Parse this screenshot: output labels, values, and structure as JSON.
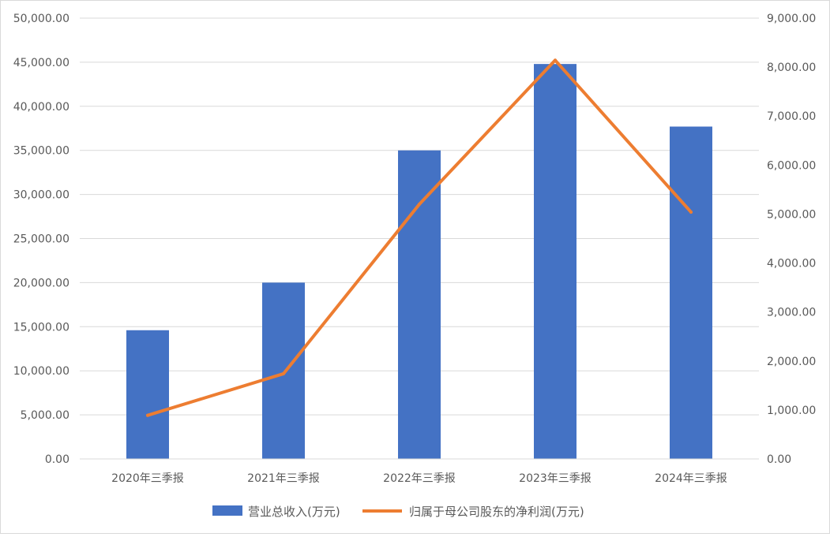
{
  "chart_data": {
    "type": "bar",
    "title": "",
    "categories": [
      "2020年三季报",
      "2021年三季报",
      "2022年三季报",
      "2023年三季报",
      "2024年三季报"
    ],
    "series": [
      {
        "name": "营业总收入(万元)",
        "type": "bar",
        "axis": "left",
        "color": "#4472c4",
        "values": [
          14600,
          20000,
          35000,
          44800,
          37700
        ]
      },
      {
        "name": "归属于母公司股东的净利润(万元)",
        "type": "line",
        "axis": "right",
        "color": "#ed7d31",
        "values": [
          890,
          1740,
          5200,
          8140,
          5040
        ]
      }
    ],
    "y_left": {
      "min": 0,
      "max": 50000,
      "step": 5000,
      "tick_labels": [
        "0.00",
        "5,000.00",
        "10,000.00",
        "15,000.00",
        "20,000.00",
        "25,000.00",
        "30,000.00",
        "35,000.00",
        "40,000.00",
        "45,000.00",
        "50,000.00"
      ]
    },
    "y_right": {
      "min": 0,
      "max": 9000,
      "step": 1000,
      "tick_labels": [
        "0.00",
        "1,000.00",
        "2,000.00",
        "3,000.00",
        "4,000.00",
        "5,000.00",
        "6,000.00",
        "7,000.00",
        "8,000.00",
        "9,000.00"
      ]
    },
    "grid": true,
    "legend": {
      "position": "bottom"
    }
  }
}
